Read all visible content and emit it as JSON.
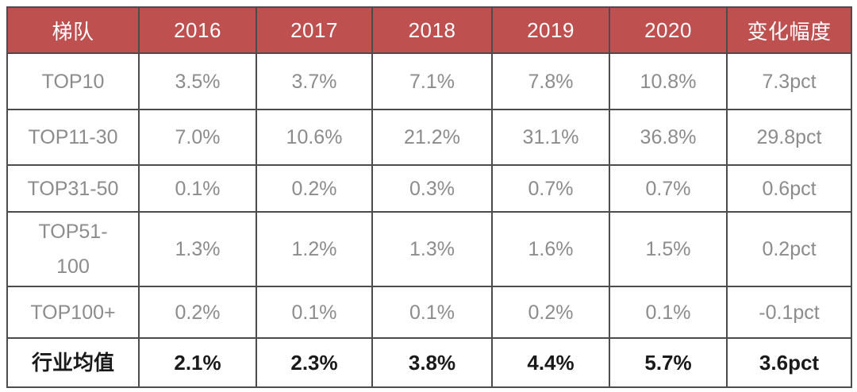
{
  "chart_data": {
    "type": "table",
    "columns": [
      "梯队",
      "2016",
      "2017",
      "2018",
      "2019",
      "2020",
      "变化幅度"
    ],
    "rows": [
      {
        "label": "TOP10",
        "values": [
          "3.5%",
          "3.7%",
          "7.1%",
          "7.8%",
          "10.8%",
          "7.3pct"
        ],
        "emphasis": false
      },
      {
        "label": "TOP11-30",
        "values": [
          "7.0%",
          "10.6%",
          "21.2%",
          "31.1%",
          "36.8%",
          "29.8pct"
        ],
        "emphasis": false
      },
      {
        "label": "TOP31-50",
        "values": [
          "0.1%",
          "0.2%",
          "0.3%",
          "0.7%",
          "0.7%",
          "0.6pct"
        ],
        "emphasis": false
      },
      {
        "label": "TOP51-100",
        "values": [
          "1.3%",
          "1.2%",
          "1.3%",
          "1.6%",
          "1.5%",
          "0.2pct"
        ],
        "emphasis": false
      },
      {
        "label": "TOP100+",
        "values": [
          "0.2%",
          "0.1%",
          "0.1%",
          "0.2%",
          "0.1%",
          "-0.1pct"
        ],
        "emphasis": false
      },
      {
        "label": "行业均值",
        "values": [
          "2.1%",
          "2.3%",
          "3.8%",
          "4.4%",
          "5.7%",
          "3.6pct"
        ],
        "emphasis": true
      }
    ],
    "layout": {
      "grid": "all-borders",
      "header_position": "top"
    }
  },
  "colors": {
    "header_bg": "#be5050",
    "header_text": "#ffffff",
    "body_text": "#8c8c8c",
    "emphasis_text": "#1a1a1a",
    "border": "#4c4c4c",
    "page_bg": "#ffffff"
  }
}
